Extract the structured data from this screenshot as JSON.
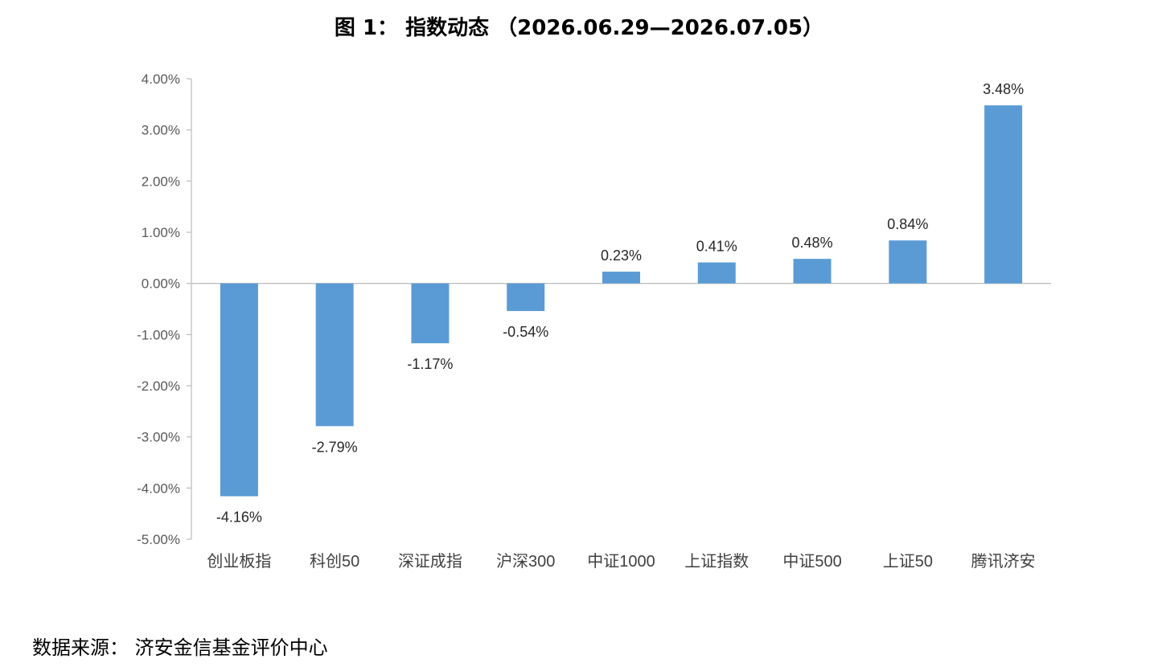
{
  "title": "图 1： 指数动态 （2026.06.29—2026.07.05）",
  "source": "数据来源： 济安金信基金评价中心",
  "colors": {
    "bar": "#5b9bd5",
    "axis": "#bfbfbf"
  },
  "chart_data": {
    "type": "bar",
    "categories": [
      "创业板指",
      "科创50",
      "深证成指",
      "沪深300",
      "中证1000",
      "上证指数",
      "中证500",
      "上证50",
      "腾讯济安"
    ],
    "values": [
      -4.16,
      -2.79,
      -1.17,
      -0.54,
      0.23,
      0.41,
      0.48,
      0.84,
      3.48
    ],
    "data_labels": [
      "-4.16%",
      "-2.79%",
      "-1.17%",
      "-0.54%",
      "0.23%",
      "0.41%",
      "0.48%",
      "0.84%",
      "3.48%"
    ],
    "yticks": [
      4,
      3,
      2,
      1,
      0,
      -1,
      -2,
      -3,
      -4,
      -5
    ],
    "ytick_labels": [
      "4.00%",
      "3.00%",
      "2.00%",
      "1.00%",
      "0.00%",
      "-1.00%",
      "-2.00%",
      "-3.00%",
      "-4.00%",
      "-5.00%"
    ],
    "ylim": [
      -5,
      4
    ],
    "grid": false,
    "legend": "none"
  }
}
